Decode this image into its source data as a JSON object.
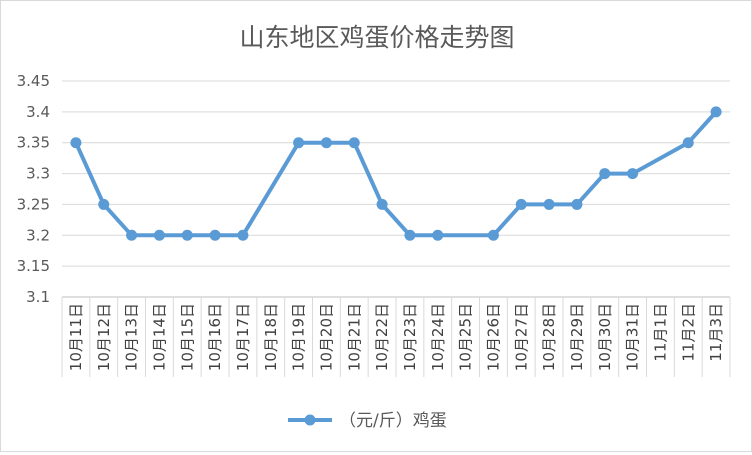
{
  "chart_data": {
    "type": "line",
    "title": "山东地区鸡蛋价格走势图",
    "xlabel": "",
    "ylabel": "",
    "ylim": [
      3.1,
      3.45
    ],
    "yticks": [
      "3.1",
      "3.15",
      "3.2",
      "3.25",
      "3.3",
      "3.35",
      "3.4",
      "3.45"
    ],
    "grid": true,
    "legend_position": "bottom",
    "categories": [
      "10月11日",
      "10月12日",
      "10月13日",
      "10月14日",
      "10月15日",
      "10月16日",
      "10月17日",
      "10月18日",
      "10月19日",
      "10月20日",
      "10月21日",
      "10月22日",
      "10月23日",
      "10月24日",
      "10月25日",
      "10月26日",
      "10月27日",
      "10月28日",
      "10月29日",
      "10月30日",
      "10月31日",
      "11月1日",
      "11月2日",
      "11月3日"
    ],
    "series": [
      {
        "name": "（元/斤）鸡蛋",
        "color": "#5b9bd5",
        "values": [
          3.35,
          3.25,
          3.2,
          3.2,
          3.2,
          3.2,
          3.2,
          null,
          3.35,
          3.35,
          3.35,
          3.25,
          3.2,
          3.2,
          null,
          3.2,
          3.25,
          3.25,
          3.25,
          3.3,
          3.3,
          null,
          3.35,
          3.4
        ]
      }
    ]
  }
}
